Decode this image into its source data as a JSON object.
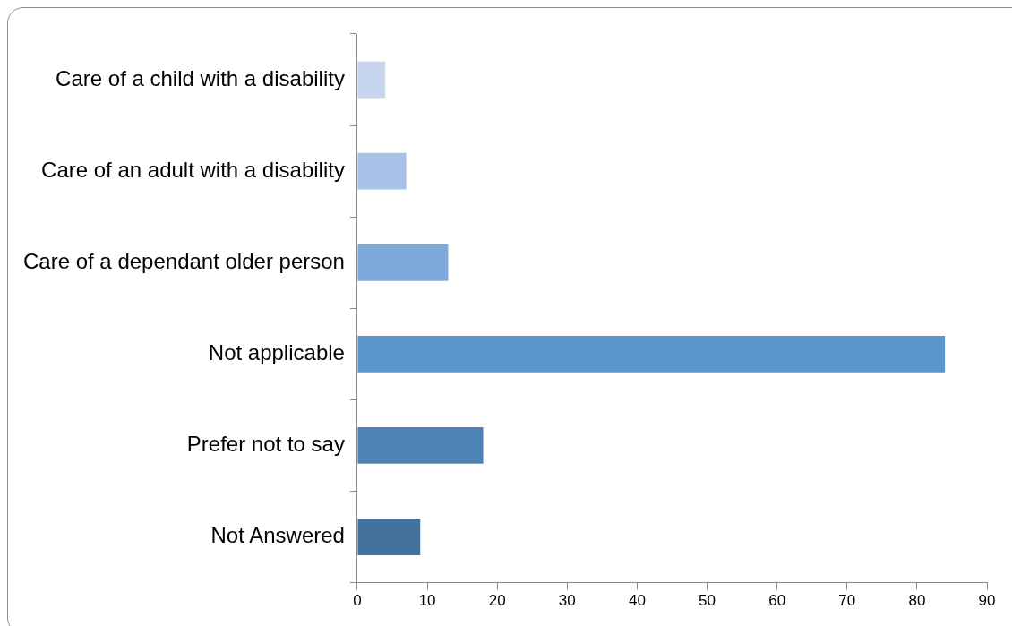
{
  "chart_data": {
    "type": "bar",
    "orientation": "horizontal",
    "categories": [
      "Care of a child with a disability",
      "Care of an adult with a disability",
      "Care of a dependant older person",
      "Not applicable",
      "Prefer not to say",
      "Not Answered"
    ],
    "values": [
      4,
      7,
      13,
      84,
      18,
      9
    ],
    "colors": [
      "#c6d6ee",
      "#a7c2e6",
      "#7eaadb",
      "#5a95cc",
      "#4d82b5",
      "#42719d"
    ],
    "xlim": [
      0,
      90
    ],
    "xticks": [
      0,
      10,
      20,
      30,
      40,
      50,
      60,
      70,
      80,
      90
    ]
  }
}
